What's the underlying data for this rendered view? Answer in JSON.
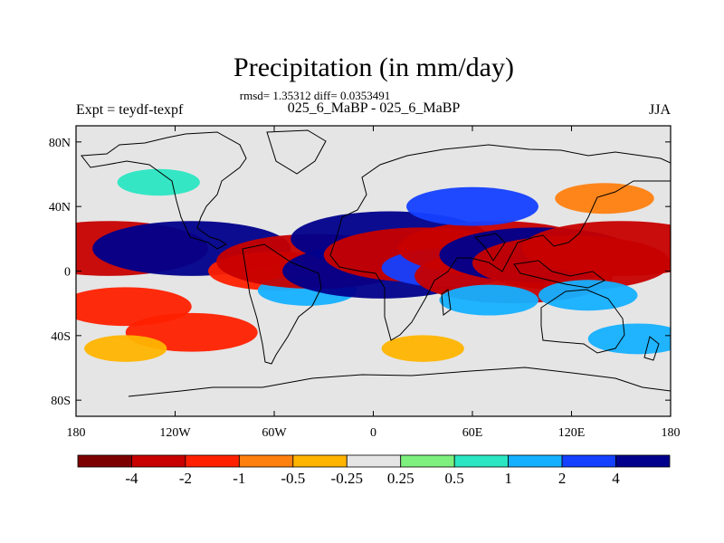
{
  "chart_data": {
    "type": "heatmap",
    "title": "Precipitation (in mm/day)",
    "stats_line": "rmsd= 1.35312 diff= 0.0353491",
    "subtitle": "025_6_MaBP - 025_6_MaBP",
    "left_label": "Expt = teydf-texpf",
    "right_label": "JJA",
    "x_ticks": [
      "180",
      "120W",
      "60W",
      "0",
      "60E",
      "120E",
      "180"
    ],
    "x_tick_values": [
      -180,
      -120,
      -60,
      0,
      60,
      120,
      180
    ],
    "y_ticks": [
      "80N",
      "40N",
      "0",
      "40S",
      "80S"
    ],
    "y_tick_values": [
      80,
      40,
      0,
      -40,
      -80
    ],
    "xlim": [
      -180,
      180
    ],
    "ylim": [
      -90,
      90
    ],
    "colorbar": {
      "colors": [
        "#7d0000",
        "#c70000",
        "#ff2000",
        "#ff7f0f",
        "#ffb400",
        "#e5e5e5",
        "#7df07d",
        "#2ae6c2",
        "#15b0ff",
        "#1440ff",
        "#00008c"
      ],
      "labels": [
        "-4",
        "-2",
        "-1",
        "-0.5",
        "-0.25",
        "0.25",
        "0.5",
        "1",
        "2",
        "4"
      ]
    },
    "fields": [
      {
        "lon": -160,
        "lat": 14,
        "value": -4
      },
      {
        "lon": -150,
        "lat": -22,
        "value": -2
      },
      {
        "lon": -110,
        "lat": -38,
        "value": -2
      },
      {
        "lon": -110,
        "lat": 14,
        "value": 4
      },
      {
        "lon": -60,
        "lat": 0,
        "value": -2
      },
      {
        "lon": -40,
        "lat": -12,
        "value": 1
      },
      {
        "lon": -35,
        "lat": 6,
        "value": -4
      },
      {
        "lon": 10,
        "lat": 20,
        "value": 4
      },
      {
        "lon": 5,
        "lat": 0,
        "value": 4
      },
      {
        "lon": 30,
        "lat": 10,
        "value": -4
      },
      {
        "lon": 45,
        "lat": 2,
        "value": 2
      },
      {
        "lon": 75,
        "lat": 14,
        "value": -4
      },
      {
        "lon": 85,
        "lat": -3,
        "value": -4
      },
      {
        "lon": 100,
        "lat": 10,
        "value": 4
      },
      {
        "lon": 120,
        "lat": 5,
        "value": -4
      },
      {
        "lon": 150,
        "lat": 14,
        "value": -4
      },
      {
        "lon": 130,
        "lat": -15,
        "value": 1
      },
      {
        "lon": 70,
        "lat": -18,
        "value": 1
      },
      {
        "lon": 60,
        "lat": 40,
        "value": 2
      },
      {
        "lon": 140,
        "lat": 45,
        "value": -1
      },
      {
        "lon": -130,
        "lat": 55,
        "value": 0.5
      },
      {
        "lon": -150,
        "lat": -48,
        "value": -0.5
      },
      {
        "lon": 30,
        "lat": -48,
        "value": -0.5
      },
      {
        "lon": 160,
        "lat": -42,
        "value": 1
      }
    ]
  }
}
